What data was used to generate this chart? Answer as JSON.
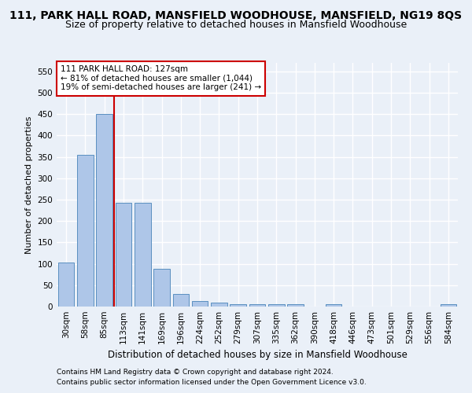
{
  "title1": "111, PARK HALL ROAD, MANSFIELD WOODHOUSE, MANSFIELD, NG19 8QS",
  "title2": "Size of property relative to detached houses in Mansfield Woodhouse",
  "xlabel": "Distribution of detached houses by size in Mansfield Woodhouse",
  "ylabel": "Number of detached properties",
  "footnote1": "Contains HM Land Registry data © Crown copyright and database right 2024.",
  "footnote2": "Contains public sector information licensed under the Open Government Licence v3.0.",
  "categories": [
    "30sqm",
    "58sqm",
    "85sqm",
    "113sqm",
    "141sqm",
    "169sqm",
    "196sqm",
    "224sqm",
    "252sqm",
    "279sqm",
    "307sqm",
    "335sqm",
    "362sqm",
    "390sqm",
    "418sqm",
    "446sqm",
    "473sqm",
    "501sqm",
    "529sqm",
    "556sqm",
    "584sqm"
  ],
  "values": [
    103,
    354,
    450,
    243,
    243,
    88,
    30,
    13,
    9,
    6,
    5,
    5,
    5,
    0,
    5,
    0,
    0,
    0,
    0,
    0,
    5
  ],
  "bar_color": "#aec6e8",
  "bar_edge_color": "#5a8fc0",
  "annotation_text_line1": "111 PARK HALL ROAD: 127sqm",
  "annotation_text_line2": "← 81% of detached houses are smaller (1,044)",
  "annotation_text_line3": "19% of semi-detached houses are larger (241) →",
  "annotation_box_color": "#ffffff",
  "annotation_box_edge": "#cc0000",
  "vline_color": "#cc0000",
  "vline_x": 2.5,
  "ylim": [
    0,
    570
  ],
  "yticks": [
    0,
    50,
    100,
    150,
    200,
    250,
    300,
    350,
    400,
    450,
    500,
    550
  ],
  "bg_color": "#eaf0f8",
  "plot_bg_color": "#eaf0f8",
  "grid_color": "#ffffff",
  "title1_fontsize": 10,
  "title2_fontsize": 9,
  "ylabel_fontsize": 8,
  "xlabel_fontsize": 8.5,
  "tick_fontsize": 7.5,
  "annot_fontsize": 7.5,
  "footnote_fontsize": 6.5
}
